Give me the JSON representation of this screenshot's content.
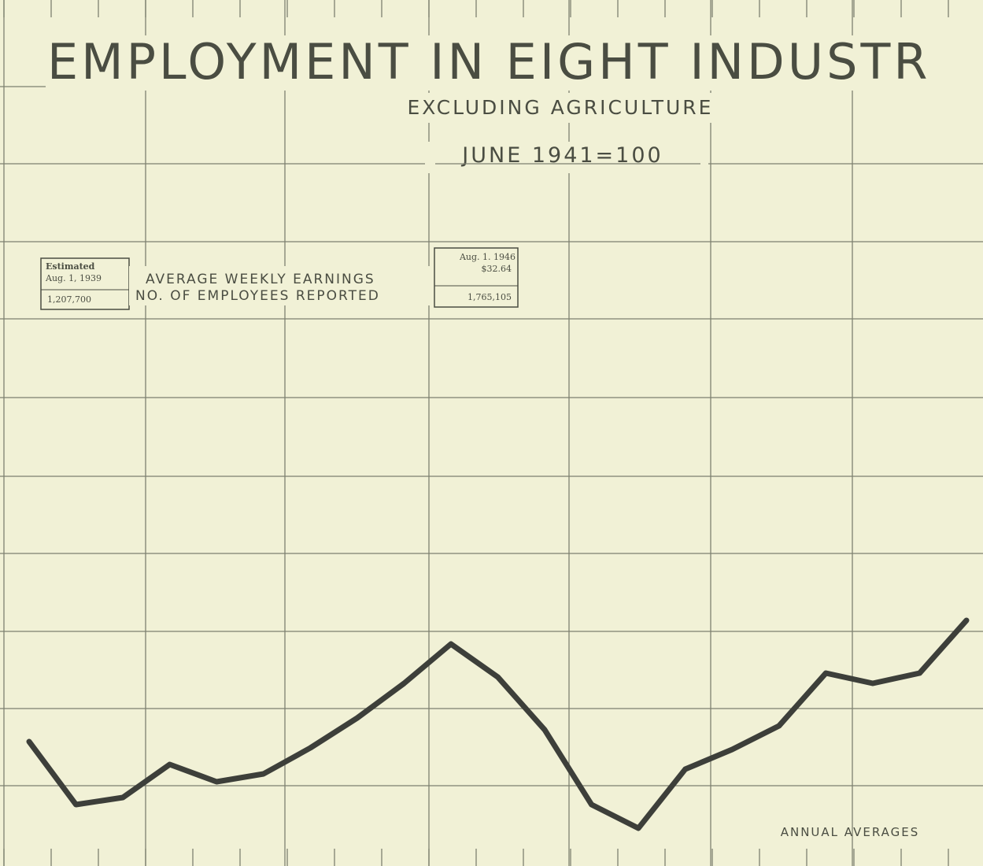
{
  "chart_data": {
    "type": "line",
    "title": "EMPLOYMENT IN EIGHT INDUSTR",
    "subtitle": "EXCLUDING AGRICULTURE",
    "base": "JUNE 1941=100",
    "annotations": [
      "Estimated",
      "Aug. 1, 1939",
      "1,207,700",
      "AVERAGE WEEKLY EARNINGS",
      "NO. OF EMPLOYEES REPORTED",
      "Aug. 1. 1946",
      "$32.64",
      "1,765,105",
      "ANNUAL AVERAGES"
    ],
    "categories": [
      null,
      null,
      null,
      null,
      null,
      null,
      null,
      null,
      null,
      null,
      null,
      null,
      null,
      null,
      null,
      null,
      null,
      null,
      null,
      null,
      null
    ],
    "series": [
      {
        "color": "#3d3f3a",
        "values": [
          15.8,
          7.8,
          8.7,
          12.9,
          10.7,
          11.7,
          15,
          18.8,
          23.2,
          28.2,
          24,
          17.3,
          7.8,
          4.8,
          12.3,
          14.8,
          17.8,
          24.5,
          23.2,
          24.5,
          31.2
        ]
      }
    ],
    "ylim": [
      0,
      110
    ]
  }
}
